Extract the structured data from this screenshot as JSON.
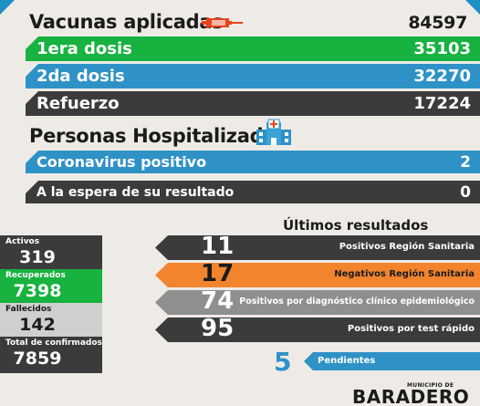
{
  "colors": {
    "green": "#17b23f",
    "blue": "#2f92c7",
    "dark": "#3b3b3b",
    "orange": "#f2842e",
    "gray": "#8f8f8f",
    "accent_red": "#e8431f",
    "background": "#eeebe6"
  },
  "vaccines": {
    "title": "Vacunas aplicadas",
    "title_icon": "syringe-icon",
    "total": "84597",
    "rows": [
      {
        "label": "1era dosis",
        "value": "35103"
      },
      {
        "label": "2da dosis",
        "value": "32270"
      },
      {
        "label": "Refuerzo",
        "value": "17224"
      }
    ]
  },
  "hospitalized": {
    "title": "Personas Hospitalizadas",
    "title_icon": "hospital-icon",
    "rows": [
      {
        "label": "Coronavirus positivo",
        "value": "2"
      },
      {
        "label": "A la espera de su resultado",
        "value": "0"
      }
    ]
  },
  "stats": [
    {
      "label": "Activos",
      "value": "319"
    },
    {
      "label": "Recuperados",
      "value": "7398"
    },
    {
      "label": "Fallecidos",
      "value": "142"
    },
    {
      "label": "Total de confirmados",
      "value": "7859"
    }
  ],
  "results": {
    "title": "Últimos resultados",
    "rows": [
      {
        "value": "11",
        "label": "Positivos Región Sanitaria"
      },
      {
        "value": "17",
        "label": "Negativos Región Sanitaria"
      },
      {
        "value": "74",
        "label": "Positivos por diagnóstico clínico epidemiológico"
      },
      {
        "value": "95",
        "label": "Positivos por test rápido"
      }
    ],
    "pending": {
      "value": "5",
      "label": "Pendientes"
    }
  },
  "footer": {
    "small": "MUNICIPIO DE",
    "big": "BARADERO"
  }
}
